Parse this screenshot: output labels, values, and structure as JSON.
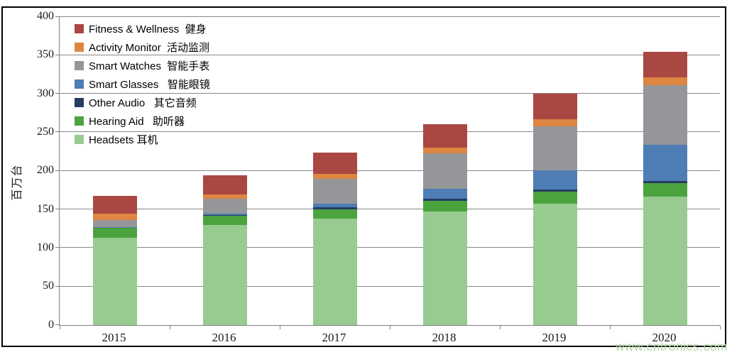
{
  "chart_data": {
    "type": "bar",
    "subtype": "stacked-vertical",
    "title": "",
    "ylabel": "百万台",
    "xlabel": "",
    "categories": [
      "2015",
      "2016",
      "2017",
      "2018",
      "2019",
      "2020"
    ],
    "ylim": [
      0,
      400
    ],
    "ytick_step": 50,
    "ytick_labels": [
      "400",
      "350",
      "300",
      "250",
      "200",
      "150",
      "100",
      "50",
      "0"
    ],
    "grid": "horizontal",
    "legend_position": "top-left-inside",
    "series_bottom_to_top": [
      {
        "name": "Headsets 耳机",
        "color": "#97cb90",
        "values": [
          113,
          129,
          138,
          147,
          157,
          166
        ]
      },
      {
        "name": "Hearing Aid   助听器",
        "color": "#4ba33e",
        "values": [
          13,
          12,
          12,
          14,
          16,
          18
        ]
      },
      {
        "name": "Other Audio   其它音频",
        "color": "#263c63",
        "values": [
          0,
          1,
          2,
          2,
          2,
          2
        ]
      },
      {
        "name": "Smart Glasses   智能眼镜",
        "color": "#4f7db5",
        "values": [
          1,
          2,
          5,
          13,
          25,
          47
        ]
      },
      {
        "name": "Smart Watches  智能手表",
        "color": "#949699",
        "values": [
          9,
          19,
          32,
          46,
          57,
          78
        ]
      },
      {
        "name": "Activity Monitor  活动监测",
        "color": "#de8640",
        "values": [
          8,
          6,
          7,
          8,
          10,
          10
        ]
      },
      {
        "name": "Fitness & Wellness  健身",
        "color": "#a94743",
        "values": [
          23,
          25,
          27,
          30,
          33,
          33
        ]
      }
    ],
    "totals": [
      167,
      194,
      223,
      260,
      300,
      354
    ],
    "watermark": "www.cntronics.com",
    "colors": {
      "gridline": "#878787",
      "axis": "#808080",
      "frame_border": "#000000",
      "watermark": "#b2d7a4"
    }
  }
}
